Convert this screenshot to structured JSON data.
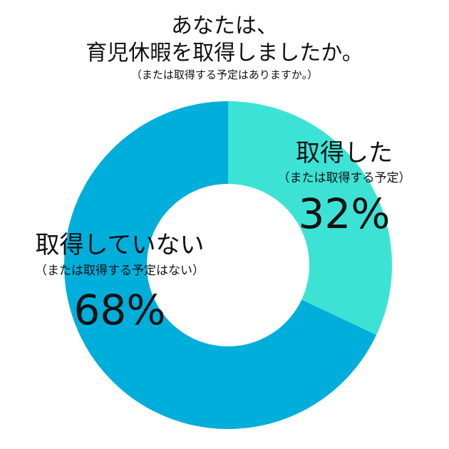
{
  "title": {
    "line1": "あなたは、",
    "line2": "育児休暇を取得しましたか。",
    "subtitle": "（または取得する予定はありますか。）"
  },
  "colors": {
    "taken": "#3ce3d5",
    "not_taken": "#00aedb",
    "background": "#ffffff"
  },
  "chart_data": {
    "type": "pie",
    "title": "あなたは、育児休暇を取得しましたか。",
    "subtitle": "（または取得する予定はありますか。）",
    "donut": true,
    "slices": [
      {
        "label": "取得した",
        "sublabel": "（または取得する予定）",
        "value": 32,
        "percent_label": "32%",
        "color": "#3ce3d5"
      },
      {
        "label": "取得していない",
        "sublabel": "（または取得する予定はない）",
        "value": 68,
        "percent_label": "68%",
        "color": "#00aedb"
      }
    ]
  }
}
